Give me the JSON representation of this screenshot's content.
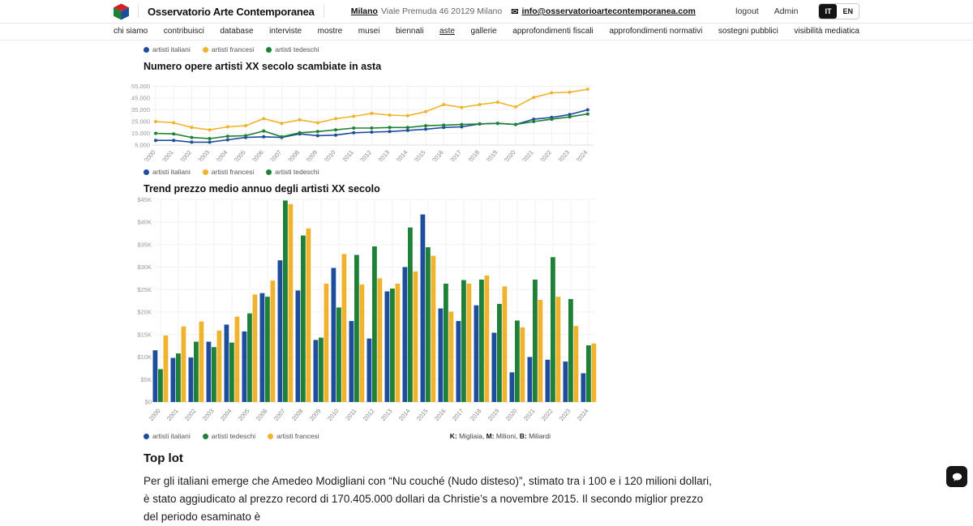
{
  "header": {
    "title": "Osservatorio Arte Contemporanea",
    "address_city": "Milano",
    "address_rest": "Viale Premuda 46 20129 Milano",
    "email": "info@osservatorioartecontemporanea.com",
    "logout_label": "logout",
    "admin_label": "Admin",
    "lang": {
      "it": "IT",
      "en": "EN"
    },
    "icons": {
      "email": "envelope-icon"
    }
  },
  "nav": {
    "items": [
      "chi siamo",
      "contribuisci",
      "database",
      "interviste",
      "mostre",
      "musei",
      "biennali",
      "aste",
      "gallerie",
      "approfondimenti fiscali",
      "approfondimenti normativi",
      "sostegni pubblici",
      "visibilità mediatica"
    ],
    "active": "aste"
  },
  "colors": {
    "blue": "#1e4d9b",
    "yellow": "#f0b32e",
    "green": "#1f8038"
  },
  "top_partial_legend": [
    {
      "name": "artisti italiani",
      "color": "#1e4d9b"
    },
    {
      "name": "artisti francesi",
      "color": "#f0b32e"
    },
    {
      "name": "artisti tedeschi",
      "color": "#1f8038"
    }
  ],
  "chart_data": [
    {
      "type": "line",
      "title": "Numero opere artisti XX secolo scambiate in asta",
      "x": [
        2000,
        2001,
        2002,
        2003,
        2004,
        2005,
        2006,
        2007,
        2008,
        2009,
        2010,
        2011,
        2012,
        2013,
        2014,
        2015,
        2016,
        2017,
        2018,
        2019,
        2020,
        2021,
        2022,
        2023,
        2024
      ],
      "ylim": [
        5000,
        55000
      ],
      "grid": true,
      "legend_position": "bottom",
      "yticks": [
        {
          "label": "55.000",
          "value": 55000
        },
        {
          "label": "45.000",
          "value": 45000
        },
        {
          "label": "35.000",
          "value": 35000
        },
        {
          "label": "25.000",
          "value": 25000
        },
        {
          "label": "15.000",
          "value": 15000
        },
        {
          "label": "5.000",
          "value": 5000
        }
      ],
      "series": [
        {
          "name": "artisti italiani",
          "color": "#1e4d9b",
          "values": [
            9000,
            9000,
            7500,
            7500,
            9500,
            11500,
            12000,
            11500,
            14500,
            13000,
            13500,
            15500,
            16000,
            16500,
            17500,
            18500,
            20000,
            20500,
            23000,
            23500,
            22500,
            27000,
            28500,
            31000,
            35000
          ]
        },
        {
          "name": "artisti francesi",
          "color": "#f0b32e",
          "values": [
            25000,
            24000,
            20000,
            18000,
            20500,
            21500,
            27500,
            23500,
            26500,
            24000,
            27500,
            29500,
            32000,
            30500,
            30000,
            33500,
            39500,
            37000,
            39500,
            41500,
            37500,
            45500,
            49500,
            50000,
            52500
          ]
        },
        {
          "name": "artisti tedeschi",
          "color": "#1f8038",
          "values": [
            15000,
            14500,
            11500,
            10500,
            12500,
            13000,
            17000,
            12000,
            15500,
            16500,
            18000,
            19500,
            19500,
            20000,
            20000,
            21500,
            22000,
            22500,
            23000,
            23500,
            22500,
            25000,
            27000,
            29000,
            31500
          ]
        }
      ]
    },
    {
      "type": "bar",
      "title": "Trend prezzo medio annuo degli artisti XX secolo",
      "categories": [
        2000,
        2001,
        2002,
        2003,
        2004,
        2005,
        2006,
        2007,
        2008,
        2009,
        2010,
        2011,
        2012,
        2013,
        2014,
        2015,
        2016,
        2017,
        2018,
        2019,
        2020,
        2021,
        2022,
        2023,
        2024
      ],
      "ylim": [
        0,
        45000
      ],
      "grid": true,
      "legend_position": "bottom",
      "yticks": [
        {
          "label": "$45K",
          "value": 45000
        },
        {
          "label": "$40K",
          "value": 40000
        },
        {
          "label": "$35K",
          "value": 35000
        },
        {
          "label": "$30K",
          "value": 30000
        },
        {
          "label": "$25K",
          "value": 25000
        },
        {
          "label": "$20K",
          "value": 20000
        },
        {
          "label": "$15K",
          "value": 15000
        },
        {
          "label": "$10K",
          "value": 10000
        },
        {
          "label": "$5K",
          "value": 5000
        },
        {
          "label": "$0",
          "value": 0
        }
      ],
      "series": [
        {
          "name": "artisti italiani",
          "color": "#1e4d9b",
          "values": [
            11500,
            9800,
            9900,
            13400,
            17200,
            15700,
            24200,
            31500,
            24800,
            13800,
            29800,
            18000,
            14100,
            24600,
            30000,
            41700,
            20800,
            18000,
            21500,
            15400,
            6600,
            10000,
            9400,
            9000,
            6400
          ]
        },
        {
          "name": "artisti tedeschi",
          "color": "#1f8038",
          "values": [
            7300,
            10800,
            13400,
            12200,
            13200,
            19700,
            23400,
            44800,
            37000,
            14300,
            21000,
            32700,
            34600,
            25200,
            38800,
            34400,
            26300,
            27100,
            27200,
            21800,
            18100,
            27200,
            32200,
            22900,
            12600
          ]
        },
        {
          "name": "artisti francesi",
          "color": "#f0b32e",
          "values": [
            14800,
            16800,
            17900,
            15900,
            19000,
            23900,
            27000,
            44000,
            38600,
            26300,
            32900,
            26100,
            27500,
            26300,
            29000,
            32500,
            20100,
            26300,
            28100,
            25700,
            16600,
            22700,
            23400,
            16900,
            13000
          ]
        }
      ],
      "units_note_parts": [
        {
          "key": "K:",
          "label": "Migliaia,"
        },
        {
          "key": "M:",
          "label": "Milioni,"
        },
        {
          "key": "B:",
          "label": "Miliardi"
        }
      ]
    }
  ],
  "top_lot": {
    "heading": "Top lot",
    "paragraph": "Per gli italiani emerge che Amedeo Modigliani con “Nu couché (Nudo disteso)”, stimato tra i 100 e i 120 milioni dollari, è stato aggiudicato al prezzo record di 170.405.000 dollari da Christie’s a novembre 2015. Il secondo miglior prezzo del periodo esaminato è"
  },
  "chat_widget": {
    "icon": "chat-bubble-icon"
  }
}
